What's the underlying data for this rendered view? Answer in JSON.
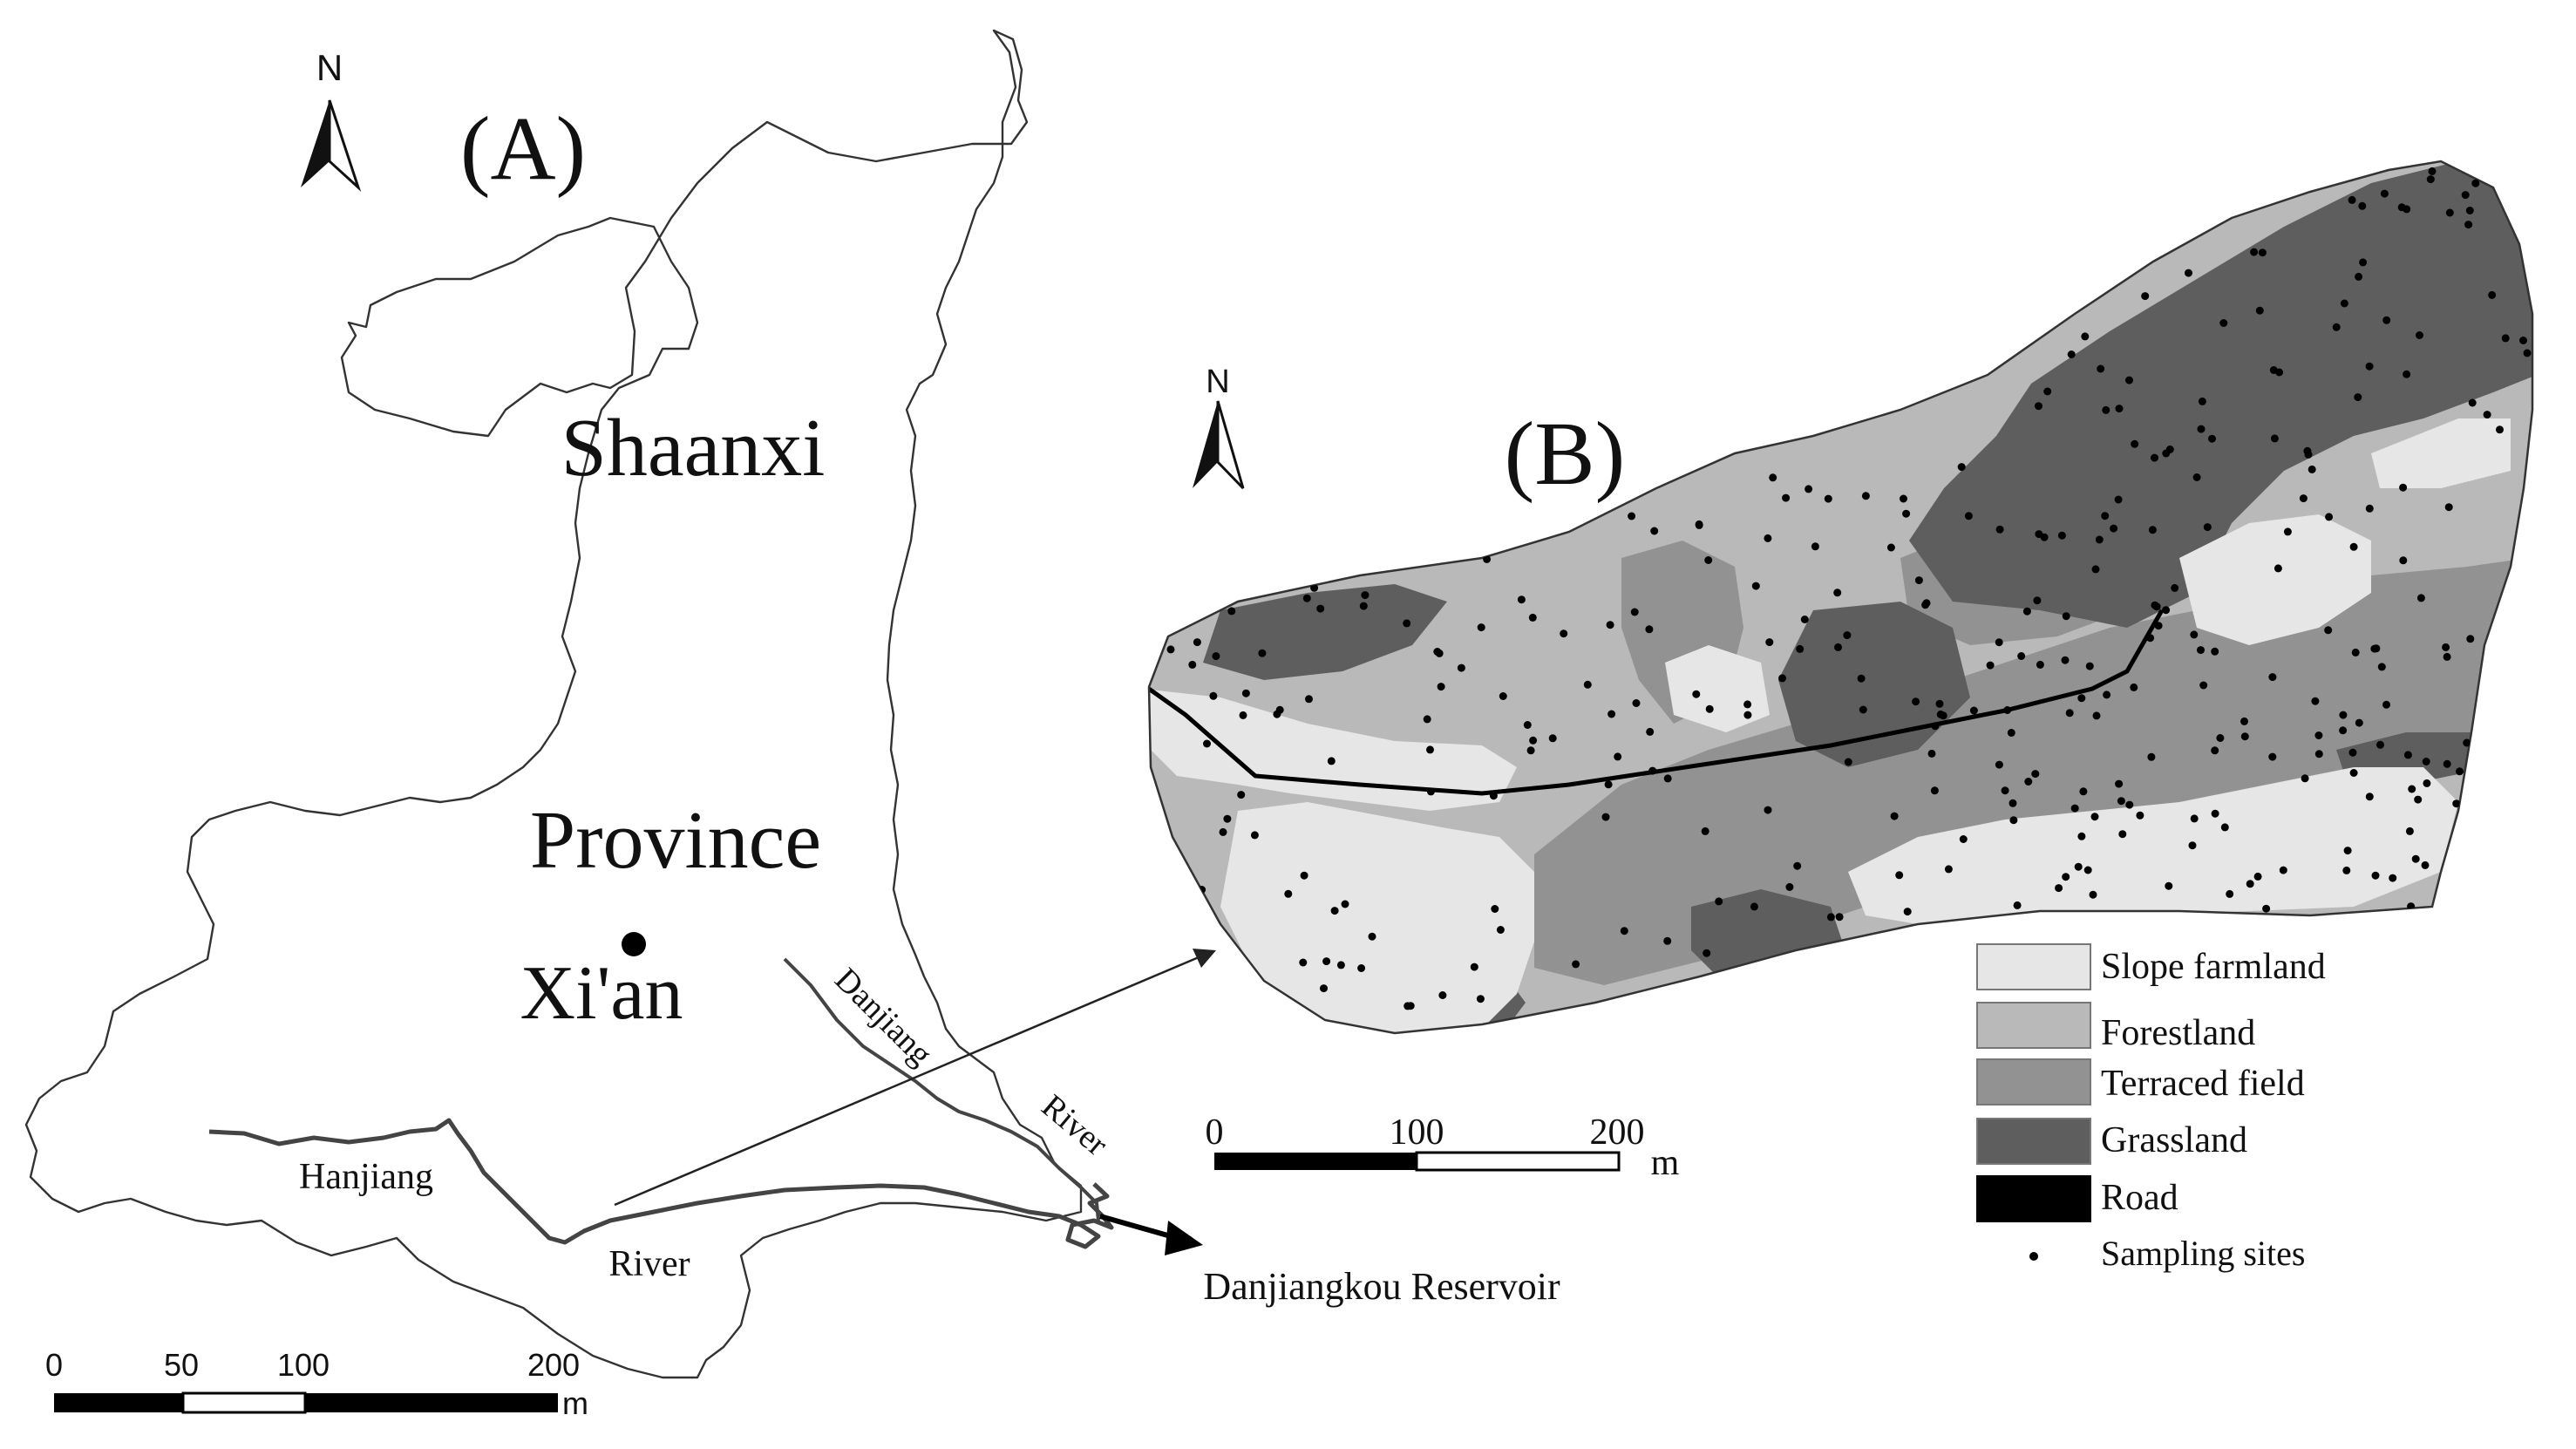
{
  "panel_a": {
    "label": "(A)",
    "north": "N",
    "region_line1": "Shaanxi",
    "region_line2": "Province",
    "city": "Xi'an",
    "river_danjiang_1": "Danjiang",
    "river_danjiang_2": "River",
    "river_hanjiang_1": "Hanjiang",
    "river_hanjiang_2": "River",
    "reservoir": "Danjiangkou Reservoir",
    "scale": {
      "ticks": [
        "0",
        "50",
        "100",
        "200"
      ],
      "unit": "m"
    }
  },
  "panel_b": {
    "label": "(B)",
    "north": "N",
    "scale": {
      "ticks": [
        "0",
        "100",
        "200"
      ],
      "unit": "m"
    }
  },
  "legend": {
    "items": [
      {
        "label": "Slope farmland",
        "color": "#e6e6e6"
      },
      {
        "label": "Forestland",
        "color": "#b9b9b9"
      },
      {
        "label": "Terraced field",
        "color": "#929292"
      },
      {
        "label": "Grassland",
        "color": "#5e5e5e"
      },
      {
        "label": "Road",
        "color": "#000000"
      },
      {
        "label": "Sampling sites",
        "color": "#000000"
      }
    ]
  }
}
